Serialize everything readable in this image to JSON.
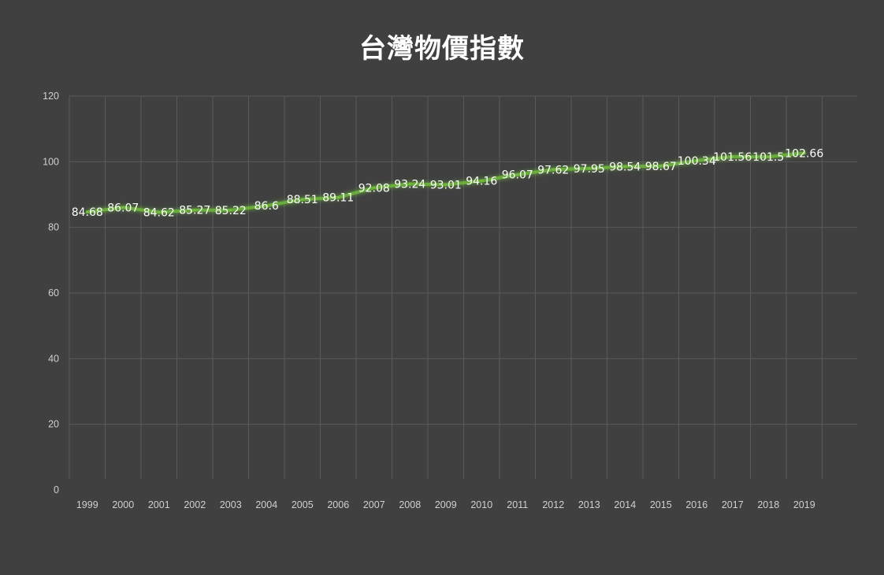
{
  "chart_data": {
    "type": "line",
    "title": "台灣物價指數",
    "xlabel": "",
    "ylabel": "",
    "ylim": [
      0,
      120
    ],
    "yticks": [
      0,
      20,
      40,
      60,
      80,
      100,
      120
    ],
    "grid": true,
    "legend": "none",
    "categories": [
      "1999",
      "2000",
      "2001",
      "2002",
      "2003",
      "2004",
      "2005",
      "2006",
      "2007",
      "2008",
      "2009",
      "2010",
      "2011",
      "2012",
      "2013",
      "2014",
      "2015",
      "2016",
      "2017",
      "2018",
      "2019"
    ],
    "series": [
      {
        "values": [
          84.68,
          86.07,
          84.62,
          85.27,
          85.22,
          86.6,
          88.51,
          89.11,
          92.08,
          93.24,
          93.01,
          94.16,
          96.07,
          97.62,
          97.95,
          98.54,
          98.67,
          100.34,
          101.56,
          101.5,
          102.66
        ],
        "labels": [
          "84.68",
          "86.07",
          "84.62",
          "85.27",
          "85.22",
          "86.6",
          "88.51",
          "89.11",
          "92.08",
          "93.24",
          "93.01",
          "94.16",
          "96.07",
          "97.62",
          "97.95",
          "98.54",
          "98.67",
          "100.34",
          "101.56",
          "101.5",
          "102.66"
        ],
        "color": "#6fbf3a"
      }
    ],
    "colors": {
      "background": "#404040",
      "grid": "#5a5a5a",
      "text": "#ffffff",
      "tick_text": "#d0d0d0",
      "line": "#6fbf3a"
    }
  }
}
